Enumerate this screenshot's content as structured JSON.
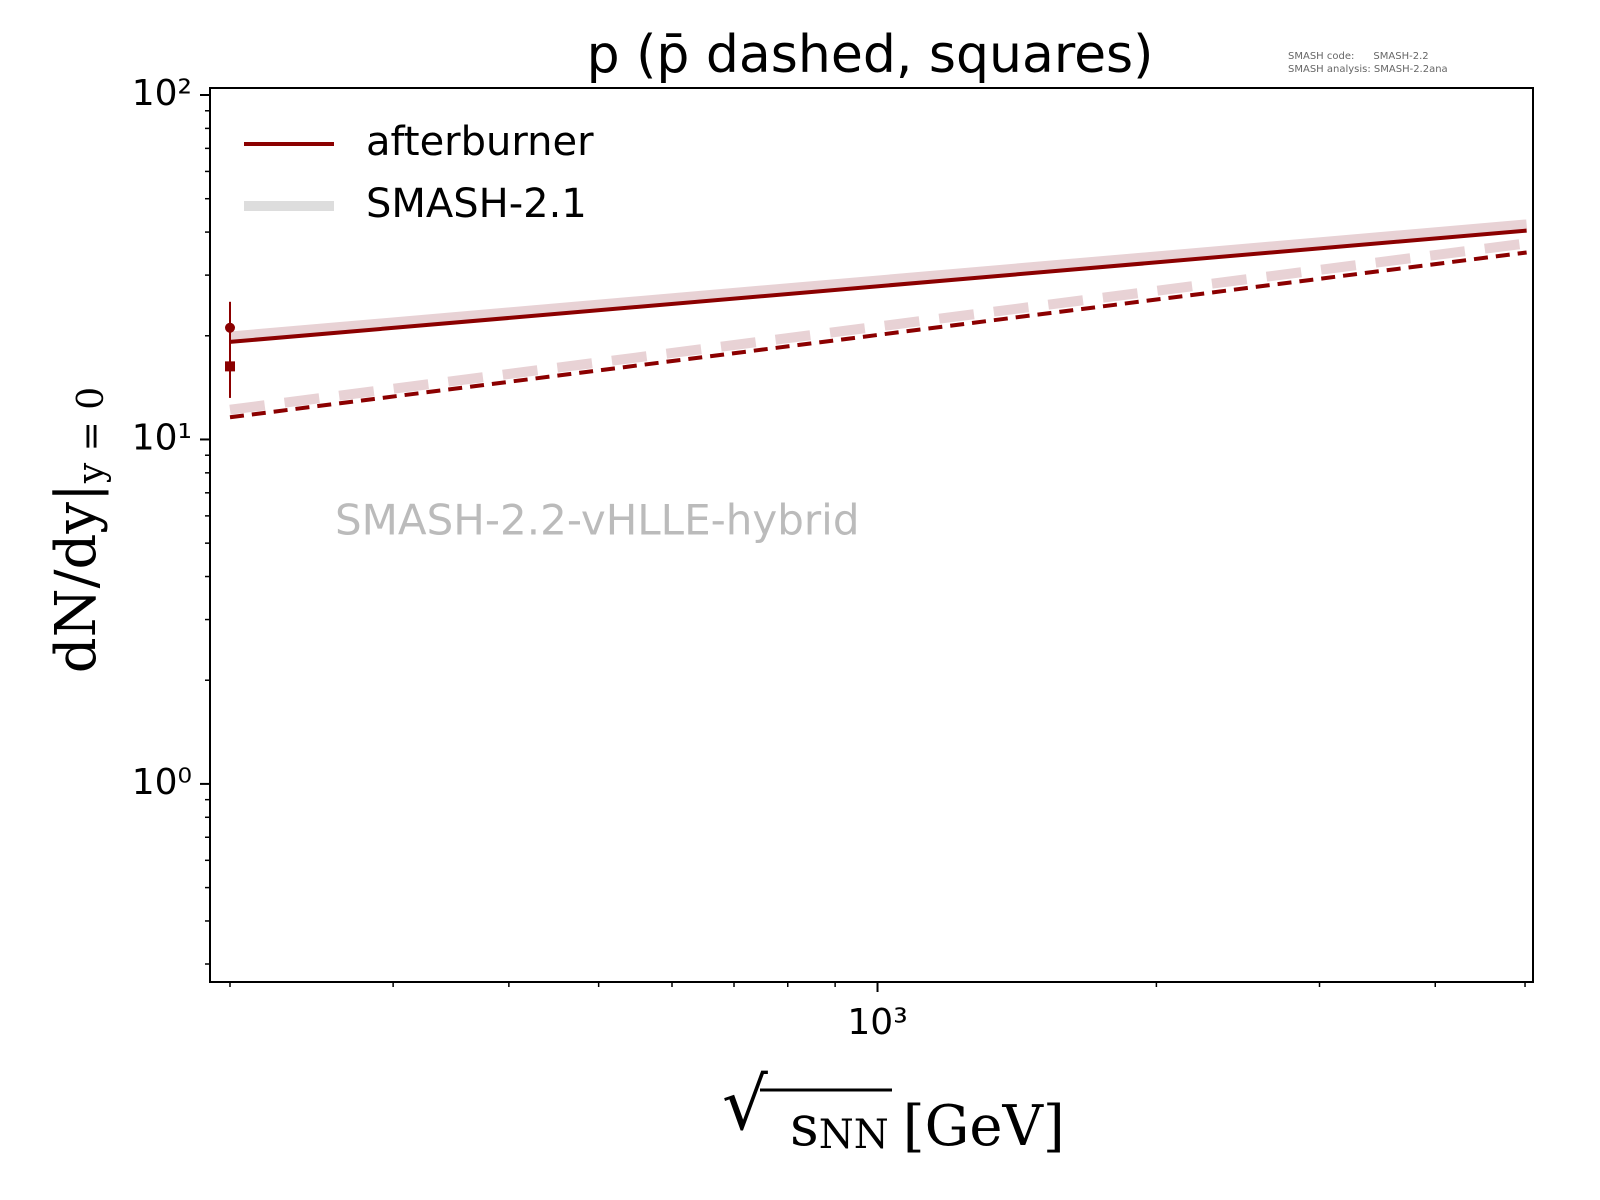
{
  "chart_data": {
    "type": "line",
    "title": "p (p̄ dashed, squares)",
    "version_text": [
      "SMASH code:      SMASH-2.2",
      "SMASH analysis: SMASH-2.2ana"
    ],
    "watermark": "SMASH-2.2-vHLLE-hybrid",
    "xlabel": {
      "root": "√",
      "base": "s",
      "sub": "NN",
      "unit": "[GeV]"
    },
    "ylabel": {
      "main": "dN/dy|",
      "sub": "y = 0"
    },
    "log_x": true,
    "log_y": true,
    "xlim": [
      190.3,
      5100
    ],
    "ylim": [
      0.266,
      104.8
    ],
    "xticks": [
      {
        "value": 1000,
        "label": "10³"
      }
    ],
    "yticks": [
      {
        "value": 1,
        "label": "10⁰"
      },
      {
        "value": 10,
        "label": "10¹"
      },
      {
        "value": 100,
        "label": "10²"
      }
    ],
    "xminor_ticks": [
      200,
      300,
      400,
      500,
      600,
      700,
      800,
      900,
      2000,
      3000,
      4000,
      5000
    ],
    "yminor_ticks": [
      0.3,
      0.4,
      0.5,
      0.6,
      0.7,
      0.8,
      0.9,
      2,
      3,
      4,
      5,
      6,
      7,
      8,
      9,
      20,
      30,
      40,
      50,
      60,
      70,
      80,
      90
    ],
    "legend": "upper left",
    "x": [
      200,
      5020
    ],
    "series": [
      {
        "name": "afterburner",
        "color": "#8b0000",
        "legend_color": "#8b0000",
        "width": 4,
        "values": [
          19.2,
          40.4
        ],
        "dashed_values": [
          11.6,
          34.9
        ]
      },
      {
        "name": "SMASH-2.1",
        "color": "#e8d2d5",
        "legend_color": "#dddddd",
        "width": 10,
        "values": [
          19.9,
          42.1
        ],
        "dashed_values": [
          12.2,
          37.1
        ]
      }
    ],
    "measurements": {
      "color": "#8b0000",
      "points": [
        {
          "marker": "circle",
          "x": 200,
          "value": 21.1,
          "error": 4.0
        },
        {
          "marker": "square",
          "x": 200,
          "value": 16.3,
          "error": 3.1
        }
      ]
    }
  }
}
